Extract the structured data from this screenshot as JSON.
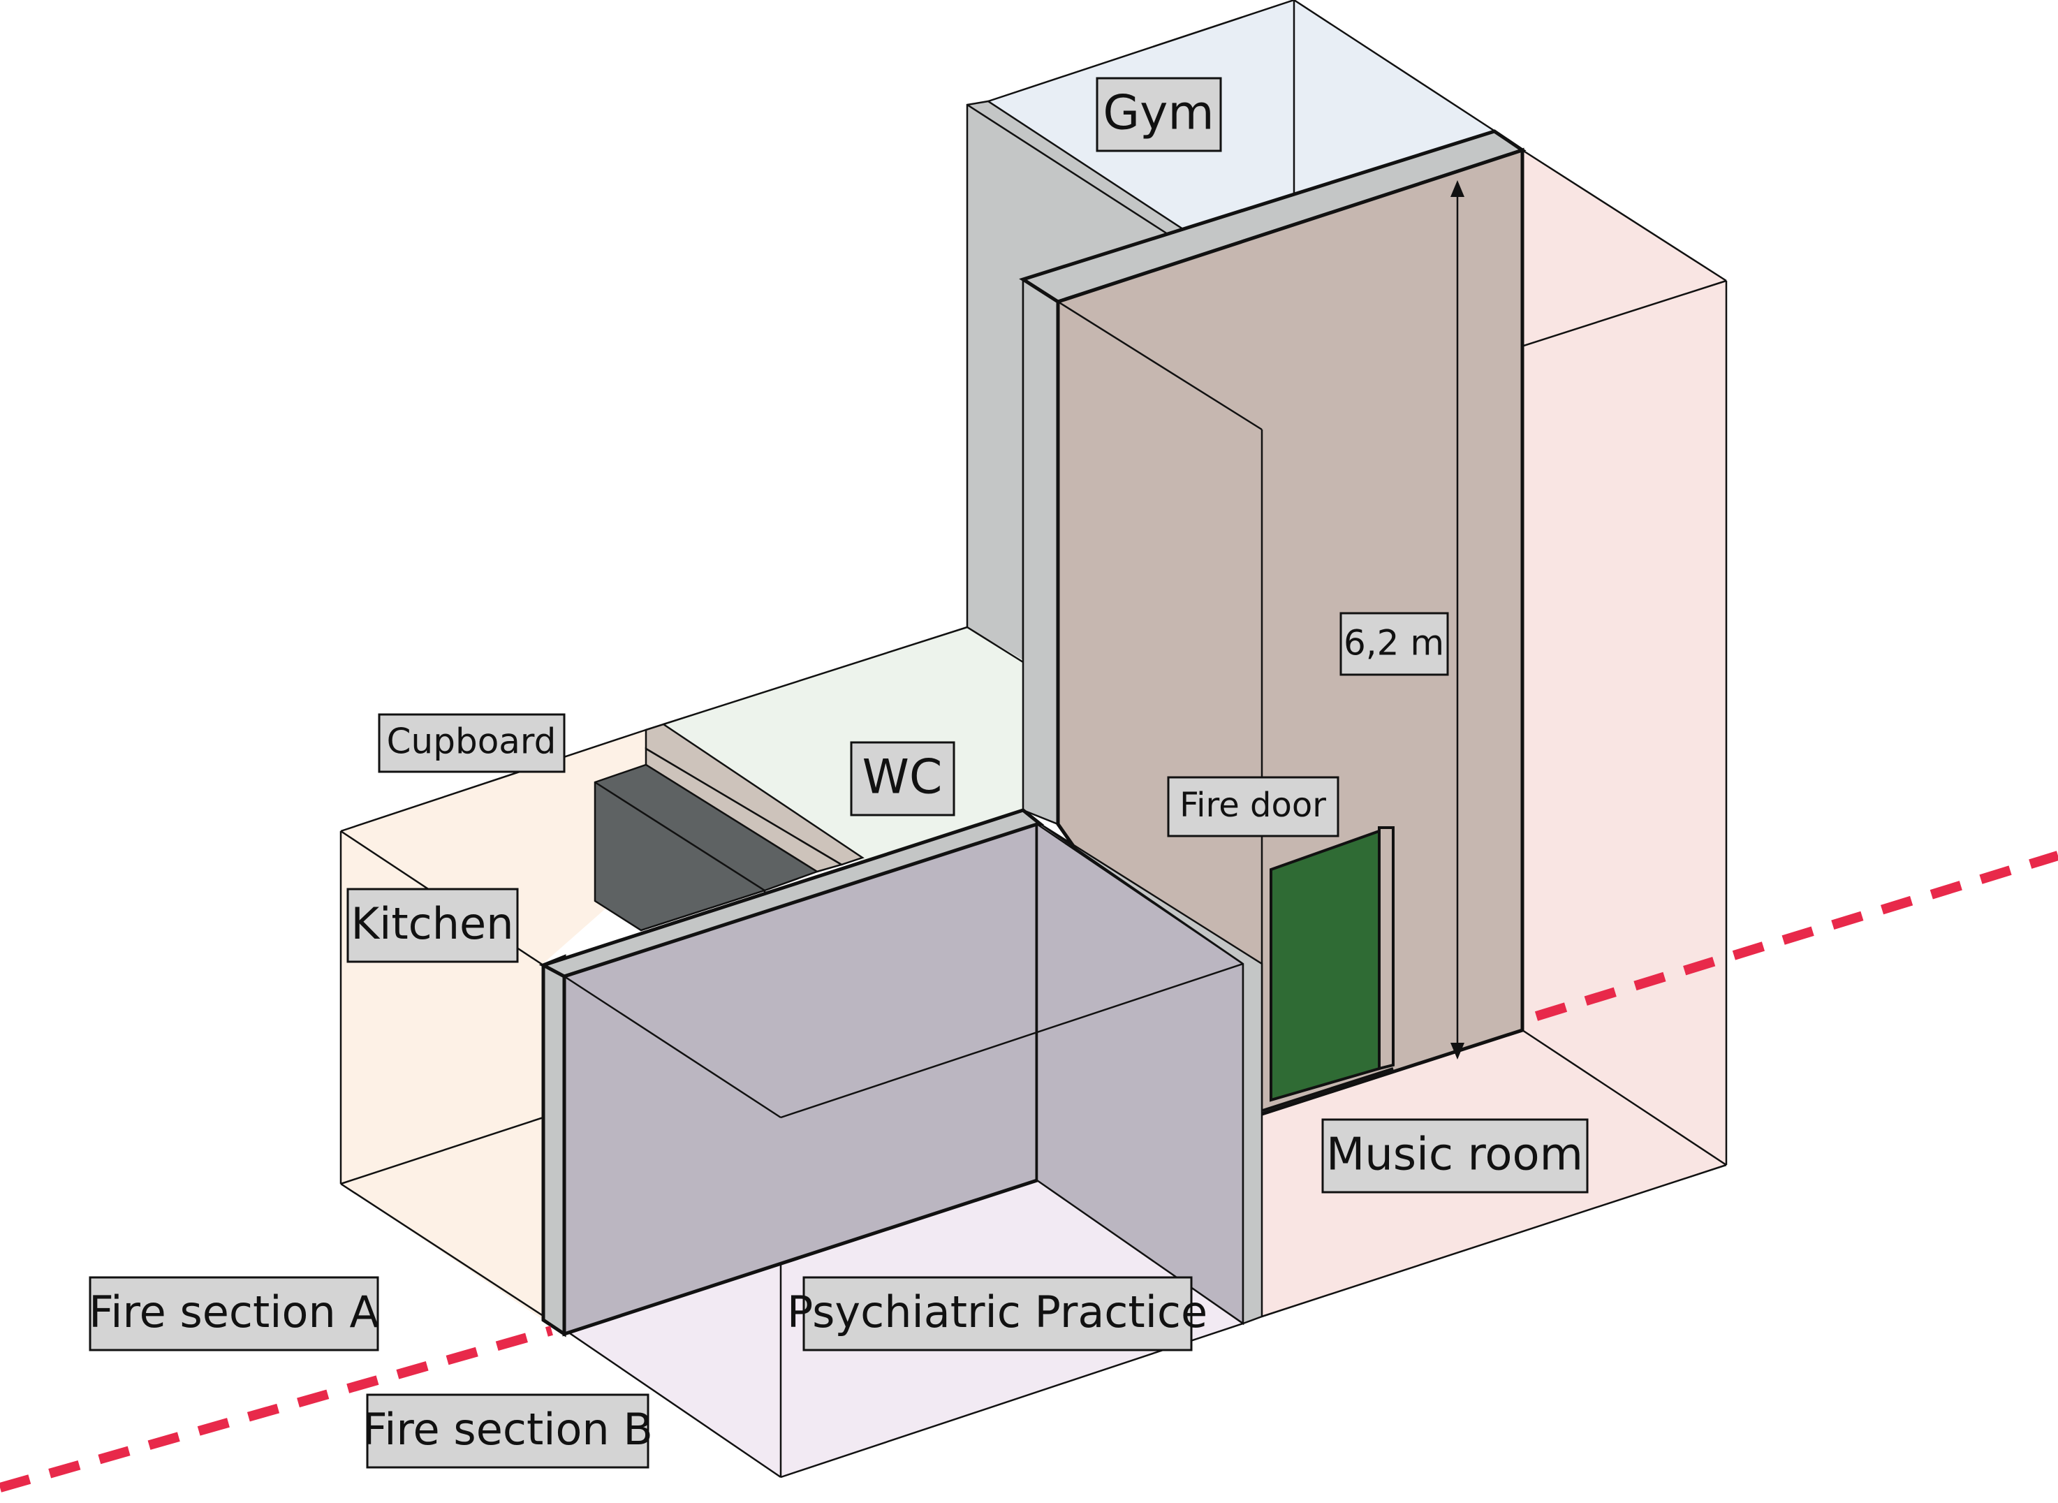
{
  "labels": {
    "gym": "Gym",
    "cupboard": "Cupboard",
    "wc": "WC",
    "kitchen": "Kitchen",
    "fire_door": "Fire door",
    "height": "6,2 m",
    "music_room": "Music room",
    "psychiatric_practice": "Psychiatric Practice",
    "fire_section_a": "Fire section A",
    "fire_section_b": "Fire section B"
  },
  "colors": {
    "gym_floor": "#e8eef5",
    "kitchen_floor": "#fdf1e6",
    "wc_floor": "#edf3ec",
    "music_floor": "#f9e5e3",
    "practice_floor": "#f2eaf3",
    "wall_grey": "#c4c6c6",
    "wall_brown": "#c6b7b0",
    "practice_wall": "#bbb6c1",
    "cupboard_dark": "#5e6263",
    "cupboard_shelf": "#cdc3bb",
    "fire_door": "#2f6b34",
    "label_bg": "#d4d4d4",
    "section_line": "#e8294a"
  }
}
